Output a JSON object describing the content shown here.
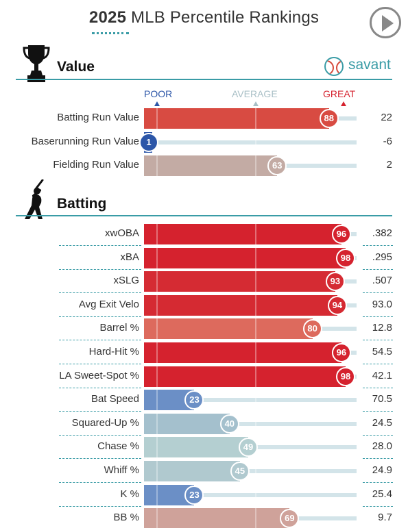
{
  "header": {
    "year": "2025",
    "title_rest": "MLB Percentile Rankings"
  },
  "icons": {
    "play": "play-icon",
    "trophy": "trophy-icon",
    "batter": "batter-icon",
    "savant_logo": "baseball-icon"
  },
  "brand": {
    "savant_label": "savant",
    "accent": "#3a9ca6"
  },
  "scale": {
    "poor": "POOR",
    "average": "AVERAGE",
    "great": "GREAT"
  },
  "sections": {
    "value": {
      "title": "Value",
      "rows": [
        {
          "label": "Batting Run Value",
          "percentile": 88,
          "value": "22",
          "color": "#d84b42"
        },
        {
          "label": "Baserunning Run Value",
          "percentile": 1,
          "value": "-6",
          "color": "#2c56a8"
        },
        {
          "label": "Fielding Run Value",
          "percentile": 63,
          "value": "2",
          "color": "#c3aba4"
        }
      ]
    },
    "batting": {
      "title": "Batting",
      "rows": [
        {
          "label": "xwOBA",
          "percentile": 96,
          "value": ".382",
          "color": "#d5222e"
        },
        {
          "label": "xBA",
          "percentile": 98,
          "value": ".295",
          "color": "#d5222e"
        },
        {
          "label": "xSLG",
          "percentile": 93,
          "value": ".507",
          "color": "#d52b33"
        },
        {
          "label": "Avg Exit Velo",
          "percentile": 94,
          "value": "93.0",
          "color": "#d52a32"
        },
        {
          "label": "Barrel %",
          "percentile": 80,
          "value": "12.8",
          "color": "#dd6a5d"
        },
        {
          "label": "Hard-Hit %",
          "percentile": 96,
          "value": "54.5",
          "color": "#d5222e"
        },
        {
          "label": "LA Sweet-Spot %",
          "percentile": 98,
          "value": "42.1",
          "color": "#d5222e"
        },
        {
          "label": "Bat Speed",
          "percentile": 23,
          "value": "70.5",
          "color": "#6b8fc6"
        },
        {
          "label": "Squared-Up %",
          "percentile": 40,
          "value": "24.5",
          "color": "#a4c0cd"
        },
        {
          "label": "Chase %",
          "percentile": 49,
          "value": "28.0",
          "color": "#b4cfd1"
        },
        {
          "label": "Whiff %",
          "percentile": 45,
          "value": "24.9",
          "color": "#b0c9cf"
        },
        {
          "label": "K %",
          "percentile": 23,
          "value": "25.4",
          "color": "#6b8fc6"
        },
        {
          "label": "BB %",
          "percentile": 69,
          "value": "9.7",
          "color": "#cfa29a"
        }
      ]
    }
  }
}
